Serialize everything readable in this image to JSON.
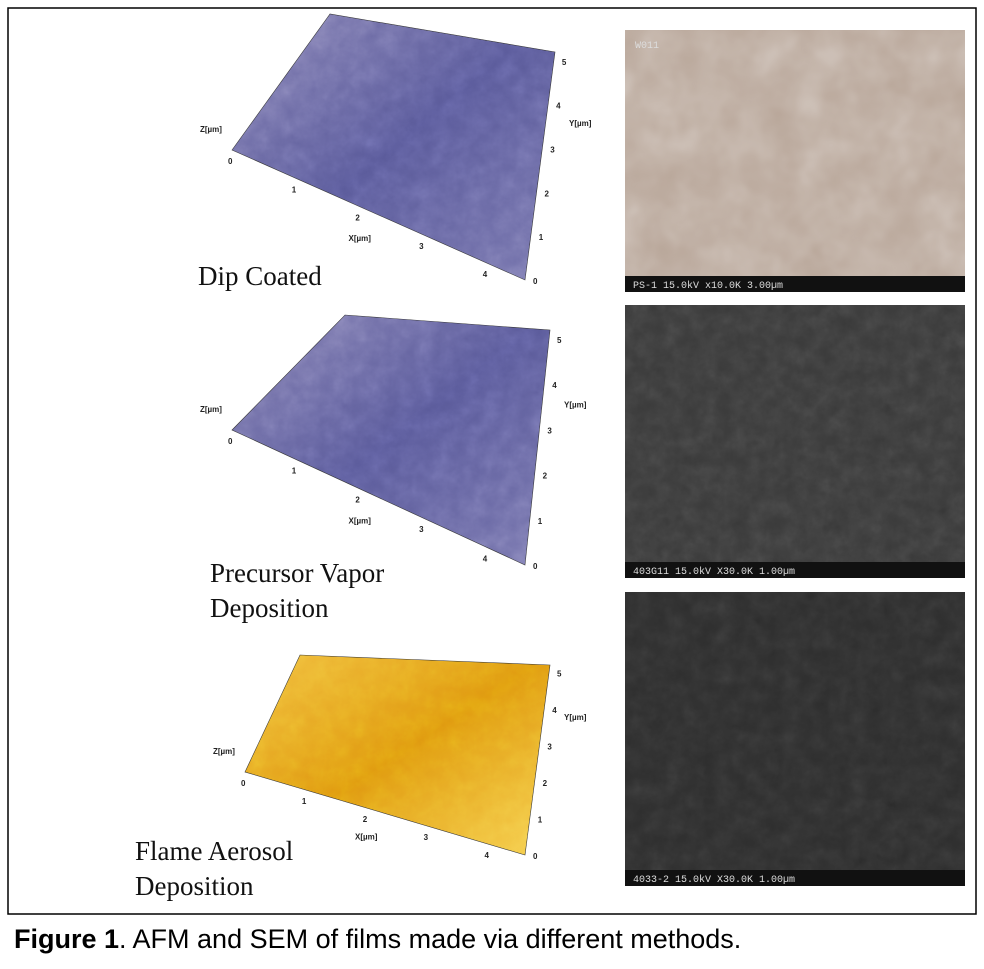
{
  "figure": {
    "panels": [
      {
        "label": [
          "Dip Coated"
        ],
        "sem_id": "W011",
        "sem_info": "PS-1   15.0kV x10.0K 3.00µm",
        "afm": {
          "x_axis": "X[µm]",
          "y_axis": "Y[µm]",
          "z_axis": "Z[µm]",
          "x_ticks": [
            "0",
            "1",
            "2",
            "3",
            "4"
          ],
          "y_ticks": [
            "0",
            "1",
            "2",
            "3",
            "4",
            "5"
          ]
        }
      },
      {
        "label": [
          "Precursor Vapor",
          "Deposition"
        ],
        "sem_info": "403G11 15.0kV X30.0K 1.00µm",
        "afm": {
          "x_axis": "X[µm]",
          "y_axis": "Y[µm]",
          "z_axis": "Z[µm]",
          "x_ticks": [
            "0",
            "1",
            "2",
            "3",
            "4"
          ],
          "y_ticks": [
            "0",
            "1",
            "2",
            "3",
            "4",
            "5"
          ]
        }
      },
      {
        "label": [
          "Flame Aerosol",
          "Deposition"
        ],
        "sem_info": "4033-2 15.0kV X30.0K 1.00µm",
        "afm": {
          "x_axis": "X[µm]",
          "y_axis": "Y[µm]",
          "z_axis": "Z[µm]",
          "x_ticks": [
            "0",
            "1",
            "2",
            "3",
            "4"
          ],
          "y_ticks": [
            "0",
            "1",
            "2",
            "3",
            "4",
            "5"
          ]
        }
      }
    ],
    "caption": {
      "label": "Figure 1",
      "text": ". AFM and SEM of films made via different methods."
    }
  }
}
